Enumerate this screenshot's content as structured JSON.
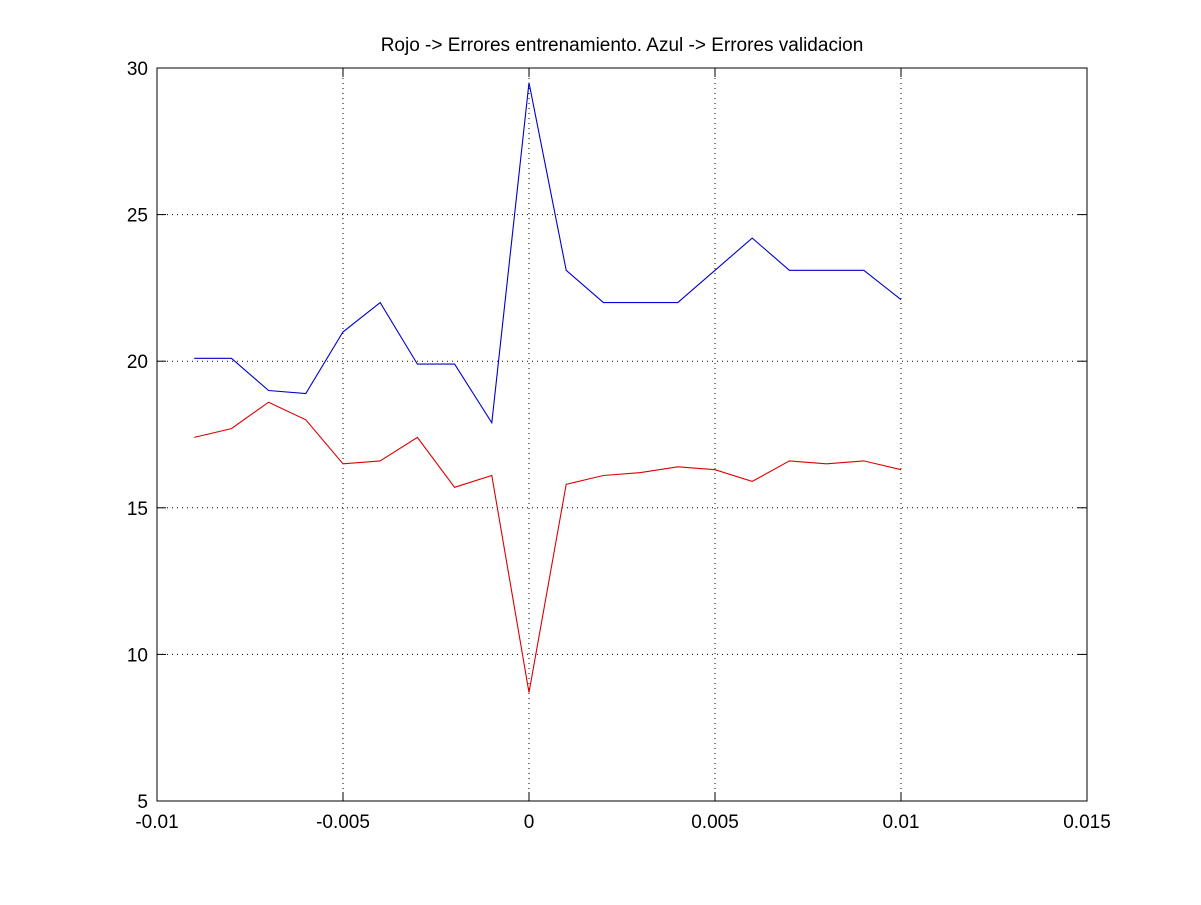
{
  "chart_data": {
    "type": "line",
    "title": "Rojo -> Errores entrenamiento. Azul -> Errores validacion",
    "xlabel": "",
    "ylabel": "",
    "xlim": [
      -0.01,
      0.015
    ],
    "ylim": [
      5,
      30
    ],
    "xticks": [
      -0.01,
      -0.005,
      0,
      0.005,
      0.01,
      0.015
    ],
    "xtick_labels": [
      "-0.01",
      "-0.005",
      "0",
      "0.005",
      "0.01",
      "0.015"
    ],
    "yticks": [
      5,
      10,
      15,
      20,
      25,
      30
    ],
    "ytick_labels": [
      "5",
      "10",
      "15",
      "20",
      "25",
      "30"
    ],
    "grid": true,
    "x": [
      -0.009,
      -0.008,
      -0.007,
      -0.006,
      -0.005,
      -0.004,
      -0.003,
      -0.002,
      -0.001,
      0,
      0.001,
      0.002,
      0.003,
      0.004,
      0.005,
      0.006,
      0.007,
      0.008,
      0.009,
      0.01
    ],
    "series": [
      {
        "color": "#0000cc",
        "values": [
          20.1,
          20.1,
          19.0,
          18.9,
          21.0,
          22.0,
          19.9,
          19.9,
          17.9,
          29.5,
          23.1,
          22.0,
          22.0,
          22.0,
          23.1,
          24.2,
          23.1,
          23.1,
          23.1,
          22.1
        ]
      },
      {
        "color": "#dd0000",
        "values": [
          17.4,
          17.7,
          18.6,
          18.0,
          16.5,
          16.6,
          17.4,
          15.7,
          16.1,
          8.7,
          15.8,
          16.1,
          16.2,
          16.4,
          16.3,
          15.9,
          16.6,
          16.5,
          16.6,
          16.3
        ]
      }
    ]
  }
}
